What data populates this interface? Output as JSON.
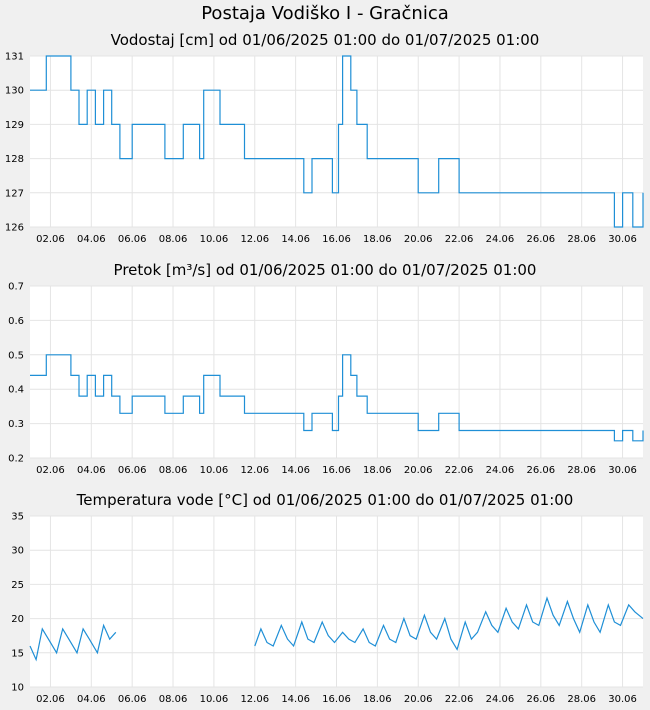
{
  "page": {
    "title": "Postaja Vodiško I - Gračnica"
  },
  "colors": {
    "series": "#1f8fd6",
    "plot_bg": "#ffffff",
    "page_bg": "#f0f0f0",
    "grid": "#e4e4e4"
  },
  "chart_data": [
    {
      "type": "line",
      "title": "Vodostaj [cm] od 01/06/2025 01:00 do 01/07/2025 01:00",
      "xlabel": "",
      "ylabel": "",
      "xlim": [
        1.0,
        31.0
      ],
      "ylim": [
        126,
        131
      ],
      "y_ticks": [
        "126",
        "127",
        "128",
        "129",
        "130",
        "131"
      ],
      "x_ticks": [
        "02.06",
        "04.06",
        "06.06",
        "08.06",
        "10.06",
        "12.06",
        "14.06",
        "16.06",
        "18.06",
        "20.06",
        "22.06",
        "24.06",
        "26.06",
        "28.06",
        "30.06"
      ],
      "grid": true,
      "x": [
        1.0,
        1.4,
        1.8,
        3.0,
        3.4,
        3.8,
        4.2,
        4.6,
        5.0,
        5.4,
        6.0,
        7.0,
        7.6,
        8.5,
        9.3,
        9.5,
        9.8,
        10.3,
        11.0,
        11.5,
        12.0,
        13.0,
        14.0,
        14.4,
        14.8,
        15.3,
        15.8,
        16.1,
        16.3,
        16.5,
        16.7,
        17.0,
        17.5,
        18.0,
        19.0,
        20.0,
        21.0,
        22.0,
        23.0,
        24.0,
        25.0,
        26.0,
        27.0,
        28.0,
        28.6,
        29.3,
        29.6,
        30.0,
        30.5,
        31.0
      ],
      "values": [
        130,
        130,
        131,
        130,
        129,
        130,
        129,
        130,
        129,
        128,
        129,
        129,
        128,
        129,
        128,
        130,
        130,
        129,
        129,
        128,
        128,
        128,
        128,
        127,
        128,
        128,
        127,
        129,
        131,
        131,
        130,
        129,
        128,
        128,
        128,
        127,
        128,
        127,
        127,
        127,
        127,
        127,
        127,
        127,
        127,
        127,
        126,
        127,
        126,
        127
      ]
    },
    {
      "type": "line",
      "title": "Pretok [m³/s] od 01/06/2025 01:00 do 01/07/2025 01:00",
      "xlabel": "",
      "ylabel": "",
      "xlim": [
        1.0,
        31.0
      ],
      "ylim": [
        0.2,
        0.7
      ],
      "y_ticks": [
        "0.2",
        "0.3",
        "0.4",
        "0.5",
        "0.6",
        "0.7"
      ],
      "x_ticks": [
        "02.06",
        "04.06",
        "06.06",
        "08.06",
        "10.06",
        "12.06",
        "14.06",
        "16.06",
        "18.06",
        "20.06",
        "22.06",
        "24.06",
        "26.06",
        "28.06",
        "30.06"
      ],
      "grid": true,
      "x": [
        1.0,
        1.4,
        1.8,
        3.0,
        3.4,
        3.8,
        4.2,
        4.6,
        5.0,
        5.4,
        6.0,
        7.0,
        7.6,
        8.5,
        9.3,
        9.5,
        9.8,
        10.3,
        11.0,
        11.5,
        12.0,
        13.0,
        14.0,
        14.4,
        14.8,
        15.3,
        15.8,
        16.1,
        16.3,
        16.5,
        16.7,
        17.0,
        17.5,
        18.0,
        19.0,
        20.0,
        21.0,
        22.0,
        23.0,
        24.0,
        25.0,
        26.0,
        27.0,
        28.0,
        28.6,
        29.3,
        29.6,
        30.0,
        30.5,
        31.0
      ],
      "values": [
        0.44,
        0.44,
        0.5,
        0.44,
        0.38,
        0.44,
        0.38,
        0.44,
        0.38,
        0.33,
        0.38,
        0.38,
        0.33,
        0.38,
        0.33,
        0.44,
        0.44,
        0.38,
        0.38,
        0.33,
        0.33,
        0.33,
        0.33,
        0.28,
        0.33,
        0.33,
        0.28,
        0.38,
        0.5,
        0.5,
        0.44,
        0.38,
        0.33,
        0.33,
        0.33,
        0.28,
        0.33,
        0.28,
        0.28,
        0.28,
        0.28,
        0.28,
        0.28,
        0.28,
        0.28,
        0.28,
        0.25,
        0.28,
        0.25,
        0.28
      ]
    },
    {
      "type": "line",
      "title": "Temperatura vode [°C] od 01/06/2025 01:00 do 01/07/2025 01:00",
      "xlabel": "",
      "ylabel": "",
      "xlim": [
        1.0,
        31.0
      ],
      "ylim": [
        10,
        35
      ],
      "y_ticks": [
        "10",
        "15",
        "20",
        "25",
        "30",
        "35"
      ],
      "x_ticks": [
        "02.06",
        "04.06",
        "06.06",
        "08.06",
        "10.06",
        "12.06",
        "14.06",
        "16.06",
        "18.06",
        "20.06",
        "22.06",
        "24.06",
        "26.06",
        "28.06",
        "30.06"
      ],
      "grid": true,
      "segments": [
        {
          "x": [
            1.0,
            1.3,
            1.6,
            1.9,
            2.3,
            2.6,
            2.9,
            3.3,
            3.6,
            3.9,
            4.3,
            4.6,
            4.9,
            5.2
          ],
          "values": [
            16,
            14,
            18.5,
            17,
            15,
            18.5,
            17,
            15,
            18.5,
            17,
            15,
            19,
            17,
            18
          ]
        },
        {
          "x": [
            12.0,
            12.3,
            12.6,
            12.9,
            13.3,
            13.6,
            13.9,
            14.3,
            14.6,
            14.9,
            15.3,
            15.6,
            15.9,
            16.3,
            16.6,
            16.9,
            17.3,
            17.6,
            17.9,
            18.3,
            18.6,
            18.9,
            19.3,
            19.6,
            19.9,
            20.3,
            20.6,
            20.9,
            21.3,
            21.6,
            21.9,
            22.3,
            22.6,
            22.9,
            23.3,
            23.6,
            23.9,
            24.3,
            24.6,
            24.9,
            25.3,
            25.6,
            25.9,
            26.3,
            26.6,
            26.9,
            27.3,
            27.6,
            27.9,
            28.3,
            28.6,
            28.9,
            29.3,
            29.6,
            29.9,
            30.3,
            30.6,
            31.0
          ],
          "values": [
            16,
            18.5,
            16.5,
            16,
            19,
            17,
            16,
            19.5,
            17,
            16.5,
            19.5,
            17.5,
            16.5,
            18,
            17,
            16.5,
            18.5,
            16.5,
            16,
            19,
            17,
            16.5,
            20,
            17.5,
            17,
            20.5,
            18,
            17,
            20,
            17,
            15.5,
            19.5,
            17,
            18,
            21,
            19,
            18,
            21.5,
            19.5,
            18.5,
            22,
            19.5,
            19,
            23,
            20.5,
            19,
            22.5,
            20,
            18,
            22,
            19.5,
            18,
            22,
            19.5,
            19,
            22,
            21,
            20
          ]
        }
      ]
    }
  ]
}
